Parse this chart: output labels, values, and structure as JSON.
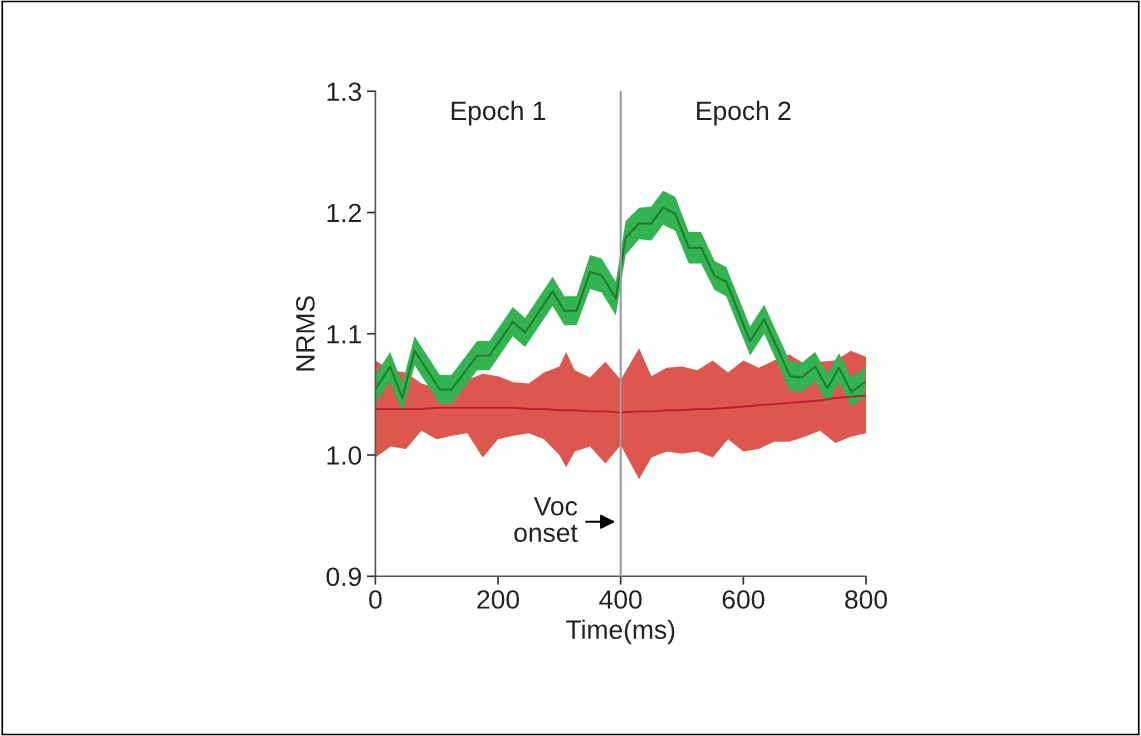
{
  "chart_data": {
    "type": "line",
    "xlabel": "Time(ms)",
    "ylabel": "NRMS",
    "xlim": [
      0,
      800
    ],
    "ylim": [
      0.9,
      1.3
    ],
    "xticks": [
      0,
      200,
      400,
      600,
      800
    ],
    "yticks": [
      {
        "value": 0.9,
        "label": "0.9"
      },
      {
        "value": 1.0,
        "label": "1.0"
      },
      {
        "value": 1.1,
        "label": "1.1"
      },
      {
        "value": 1.2,
        "label": "1.2"
      },
      {
        "value": 1.3,
        "label": "1.3"
      }
    ],
    "grid": false,
    "legend": false,
    "marker": "none",
    "line_style": "solid",
    "ref_lines": [
      {
        "axis": "x",
        "value": 400,
        "color": "#9a9a9a"
      }
    ],
    "annotations": [
      "Epoch 1",
      "Epoch 2",
      {
        "text": "Voc\nonset",
        "x": 400,
        "y": 0.945
      }
    ],
    "series": [
      {
        "color": "#c0202a",
        "x": [
          0,
          25,
          50,
          75,
          100,
          125,
          150,
          175,
          200,
          225,
          250,
          275,
          300,
          311,
          325,
          350,
          375,
          400,
          430,
          450,
          475,
          500,
          525,
          550,
          575,
          600,
          625,
          650,
          675,
          700,
          725,
          750,
          775,
          800
        ],
        "values": [
          1.038,
          1.038,
          1.038,
          1.038,
          1.039,
          1.039,
          1.039,
          1.039,
          1.039,
          1.039,
          1.038,
          1.038,
          1.037,
          1.037,
          1.037,
          1.036,
          1.036,
          1.035,
          1.036,
          1.036,
          1.037,
          1.037,
          1.038,
          1.038,
          1.039,
          1.04,
          1.041,
          1.042,
          1.043,
          1.044,
          1.045,
          1.047,
          1.048,
          1.049
        ],
        "upper": [
          1.078,
          1.07,
          1.068,
          1.059,
          1.055,
          1.059,
          1.062,
          1.067,
          1.065,
          1.06,
          1.059,
          1.068,
          1.073,
          1.085,
          1.07,
          1.064,
          1.077,
          1.062,
          1.088,
          1.065,
          1.072,
          1.073,
          1.07,
          1.078,
          1.068,
          1.078,
          1.072,
          1.078,
          1.083,
          1.075,
          1.077,
          1.078,
          1.086,
          1.081
        ],
        "lower": [
          0.998,
          1.007,
          1.005,
          1.02,
          1.013,
          1.016,
          1.018,
          0.998,
          1.013,
          1.016,
          1.018,
          1.013,
          1.0,
          0.99,
          1.003,
          1.007,
          0.993,
          1.008,
          0.98,
          0.998,
          1.003,
          1.001,
          1.003,
          0.998,
          1.013,
          1.003,
          1.005,
          1.011,
          1.011,
          1.015,
          1.02,
          1.01,
          1.015,
          1.018
        ]
      },
      {
        "color": "#1f7a2a",
        "x": [
          0,
          24,
          44,
          64,
          105,
          124,
          166,
          186,
          224,
          244,
          289,
          308,
          328,
          350,
          369,
          392,
          408,
          430,
          450,
          469,
          489,
          511,
          531,
          553,
          572,
          611,
          634,
          676,
          695,
          717,
          737,
          756,
          776,
          798
        ],
        "values": [
          1.054,
          1.073,
          1.047,
          1.086,
          1.054,
          1.054,
          1.082,
          1.082,
          1.11,
          1.101,
          1.135,
          1.119,
          1.119,
          1.151,
          1.148,
          1.129,
          1.179,
          1.191,
          1.191,
          1.204,
          1.199,
          1.171,
          1.171,
          1.148,
          1.143,
          1.094,
          1.112,
          1.065,
          1.064,
          1.073,
          1.055,
          1.072,
          1.052,
          1.06
        ],
        "upper": [
          1.066,
          1.085,
          1.059,
          1.098,
          1.066,
          1.066,
          1.094,
          1.094,
          1.122,
          1.113,
          1.147,
          1.131,
          1.131,
          1.165,
          1.162,
          1.143,
          1.193,
          1.204,
          1.205,
          1.218,
          1.213,
          1.184,
          1.184,
          1.16,
          1.155,
          1.106,
          1.124,
          1.077,
          1.076,
          1.085,
          1.067,
          1.084,
          1.064,
          1.072
        ],
        "lower": [
          1.042,
          1.061,
          1.035,
          1.074,
          1.042,
          1.042,
          1.07,
          1.07,
          1.098,
          1.089,
          1.123,
          1.107,
          1.107,
          1.137,
          1.134,
          1.115,
          1.165,
          1.178,
          1.177,
          1.19,
          1.185,
          1.158,
          1.158,
          1.136,
          1.131,
          1.082,
          1.1,
          1.053,
          1.052,
          1.061,
          1.043,
          1.06,
          1.04,
          1.048
        ]
      }
    ]
  }
}
